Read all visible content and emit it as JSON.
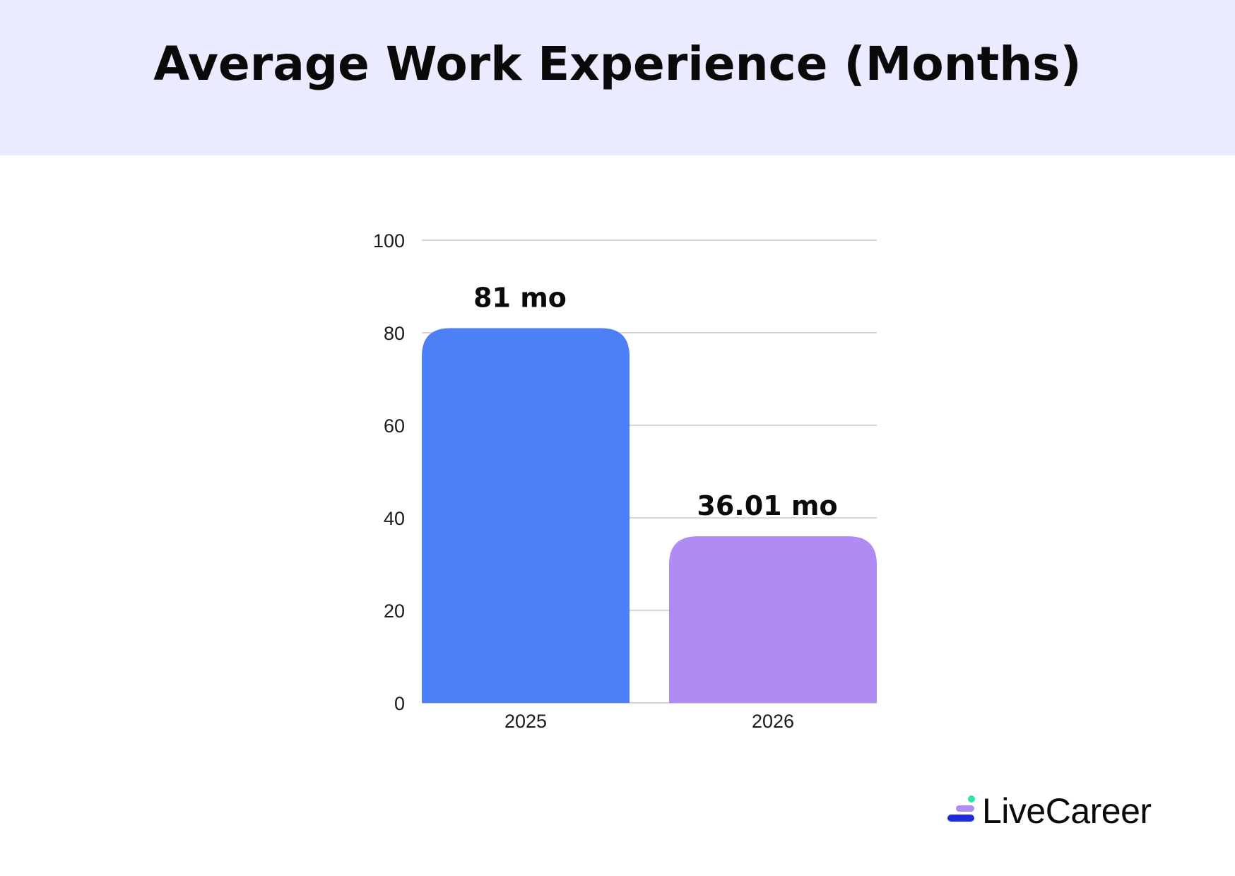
{
  "header": {
    "title": "Average Work Experience (Months)"
  },
  "chart_data": {
    "type": "bar",
    "categories": [
      "2025",
      "2026"
    ],
    "values": [
      81,
      36.01
    ],
    "data_labels": [
      "81 mo",
      "36.01 mo"
    ],
    "bar_colors": [
      "#4d80f7",
      "#ae8cf4"
    ],
    "ylim": [
      0,
      100
    ],
    "yticks": [
      0,
      20,
      40,
      60,
      80,
      100
    ],
    "grid": true,
    "legend": "none",
    "xlabel": "",
    "ylabel": ""
  },
  "brand": {
    "name": "LiveCareer",
    "colors": {
      "dot": "#2ee6a0",
      "middle": "#ae8cf4",
      "bottom": "#1e2bdc"
    }
  },
  "colors": {
    "header_background": "#ebebff",
    "gridline": "#c8c8c8"
  }
}
